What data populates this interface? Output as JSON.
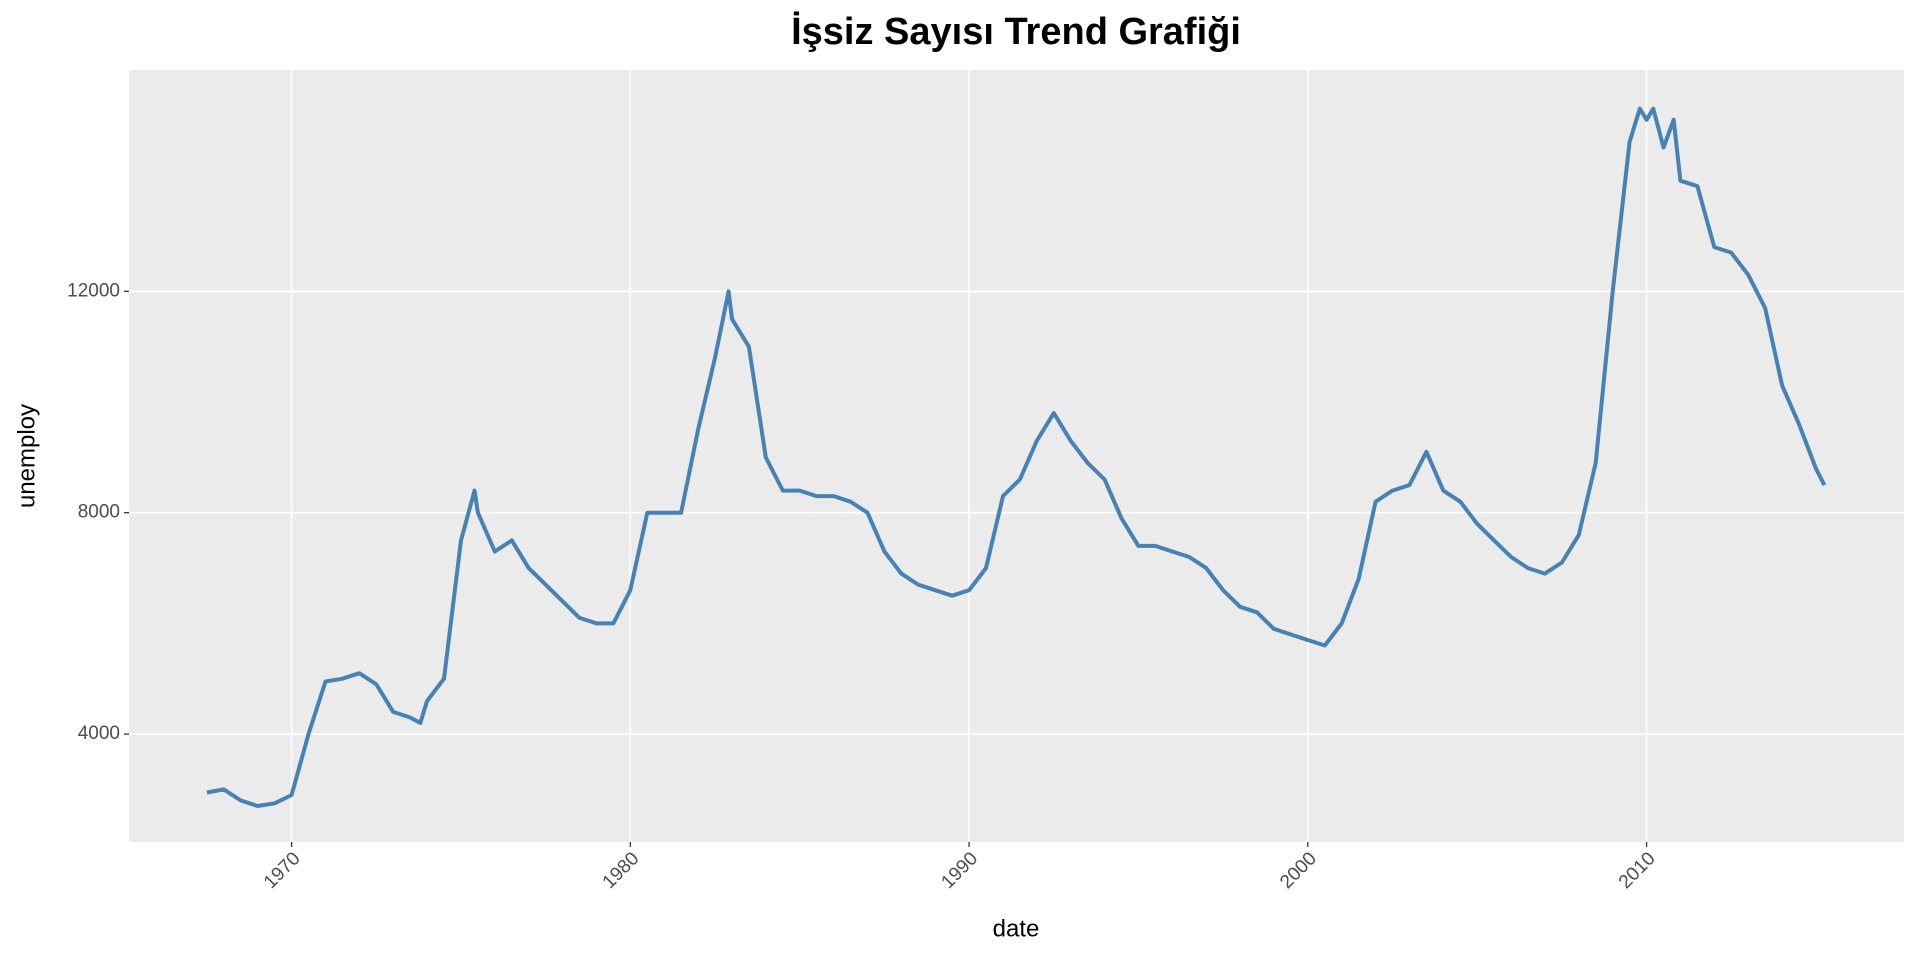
{
  "chart_data": {
    "type": "line",
    "title": "İşsiz Sayısı Trend Grafiği",
    "x_label": "date",
    "y_label": "unemploy",
    "color": "#4682b4",
    "grid": true,
    "xlim": [
      1965.2,
      2017.6
    ],
    "xticks": [
      1970,
      1980,
      1990,
      2000,
      2010
    ],
    "ylim": [
      2050,
      16000
    ],
    "yticks": [
      4000,
      8000,
      12000
    ],
    "x": [
      1967.5,
      1968.0,
      1968.5,
      1969.0,
      1969.5,
      1970.0,
      1970.5,
      1971.0,
      1971.5,
      1972.0,
      1972.5,
      1973.0,
      1973.5,
      1973.8,
      1974.0,
      1974.5,
      1975.0,
      1975.4,
      1975.5,
      1976.0,
      1976.5,
      1977.0,
      1977.5,
      1978.0,
      1978.5,
      1979.0,
      1979.5,
      1980.0,
      1980.5,
      1981.0,
      1981.5,
      1982.0,
      1982.5,
      1982.9,
      1983.0,
      1983.5,
      1984.0,
      1984.5,
      1985.0,
      1985.5,
      1986.0,
      1986.5,
      1987.0,
      1987.5,
      1988.0,
      1988.5,
      1989.0,
      1989.5,
      1990.0,
      1990.5,
      1991.0,
      1991.5,
      1992.0,
      1992.5,
      1993.0,
      1993.5,
      1994.0,
      1994.5,
      1995.0,
      1995.5,
      1996.0,
      1996.5,
      1997.0,
      1997.5,
      1998.0,
      1998.5,
      1999.0,
      1999.5,
      2000.0,
      2000.5,
      2001.0,
      2001.5,
      2002.0,
      2002.5,
      2003.0,
      2003.5,
      2004.0,
      2004.5,
      2005.0,
      2005.5,
      2006.0,
      2006.5,
      2007.0,
      2007.5,
      2008.0,
      2008.5,
      2009.0,
      2009.5,
      2009.8,
      2010.0,
      2010.2,
      2010.5,
      2010.8,
      2011.0,
      2011.5,
      2012.0,
      2012.5,
      2013.0,
      2013.5,
      2014.0,
      2014.5,
      2015.0,
      2015.25
    ],
    "values": [
      2944,
      3000,
      2800,
      2700,
      2750,
      2900,
      4000,
      4950,
      5000,
      5100,
      4900,
      4400,
      4300,
      4200,
      4600,
      5000,
      7500,
      8400,
      8000,
      7300,
      7500,
      7000,
      6700,
      6400,
      6100,
      6000,
      6000,
      6600,
      8000,
      8000,
      8000,
      9500,
      10800,
      12000,
      11500,
      11000,
      9000,
      8400,
      8400,
      8300,
      8300,
      8200,
      8000,
      7300,
      6900,
      6700,
      6600,
      6500,
      6600,
      7000,
      8300,
      8600,
      9300,
      9800,
      9300,
      8900,
      8600,
      7900,
      7400,
      7400,
      7300,
      7200,
      7000,
      6600,
      6300,
      6200,
      5900,
      5800,
      5700,
      5600,
      6000,
      6800,
      8200,
      8400,
      8500,
      9100,
      8400,
      8200,
      7800,
      7500,
      7200,
      7000,
      6900,
      7100,
      7600,
      8900,
      12000,
      14700,
      15300,
      15100,
      15300,
      14600,
      15100,
      14000,
      13900,
      12800,
      12700,
      12300,
      11700,
      10300,
      9600,
      8800,
      8500
    ]
  }
}
